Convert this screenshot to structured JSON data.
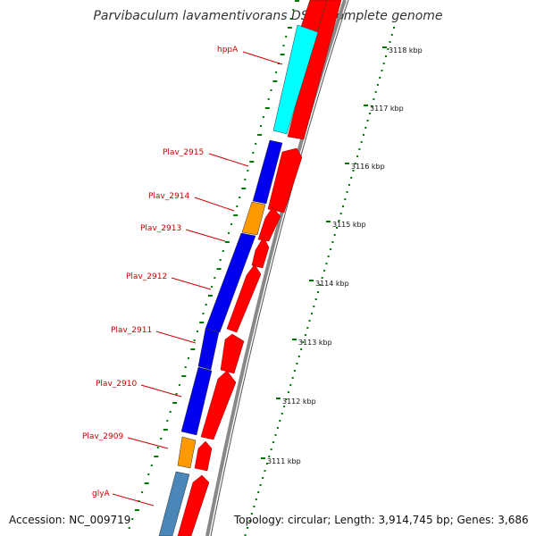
{
  "title": "Parvibaculum lavamentivorans DS-1, complete genome",
  "accession": "Accession: NC_009719",
  "topology": "Topology: circular; Length: 3,914,745 bp; Genes: 3,686",
  "colors": {
    "label": "#cc0000",
    "forward_cds": "#ff0000",
    "tick": "#007700",
    "backbone": "#888888",
    "blue": "#0000ee",
    "orange": "#ff9900",
    "cyan": "#00ffff",
    "steelblue": "#4a86b8"
  },
  "gene_labels": [
    "hppA",
    "Plav_2915",
    "Plav_2914",
    "Plav_2913",
    "Plav_2912",
    "Plav_2911",
    "Plav_2910",
    "Plav_2909",
    "glyA"
  ],
  "scale_labels": [
    "3118 kbp",
    "3117 kbp",
    "3116 kbp",
    "3115 kbp",
    "3114 kbp",
    "3113 kbp",
    "3112 kbp",
    "3111 kbp"
  ]
}
